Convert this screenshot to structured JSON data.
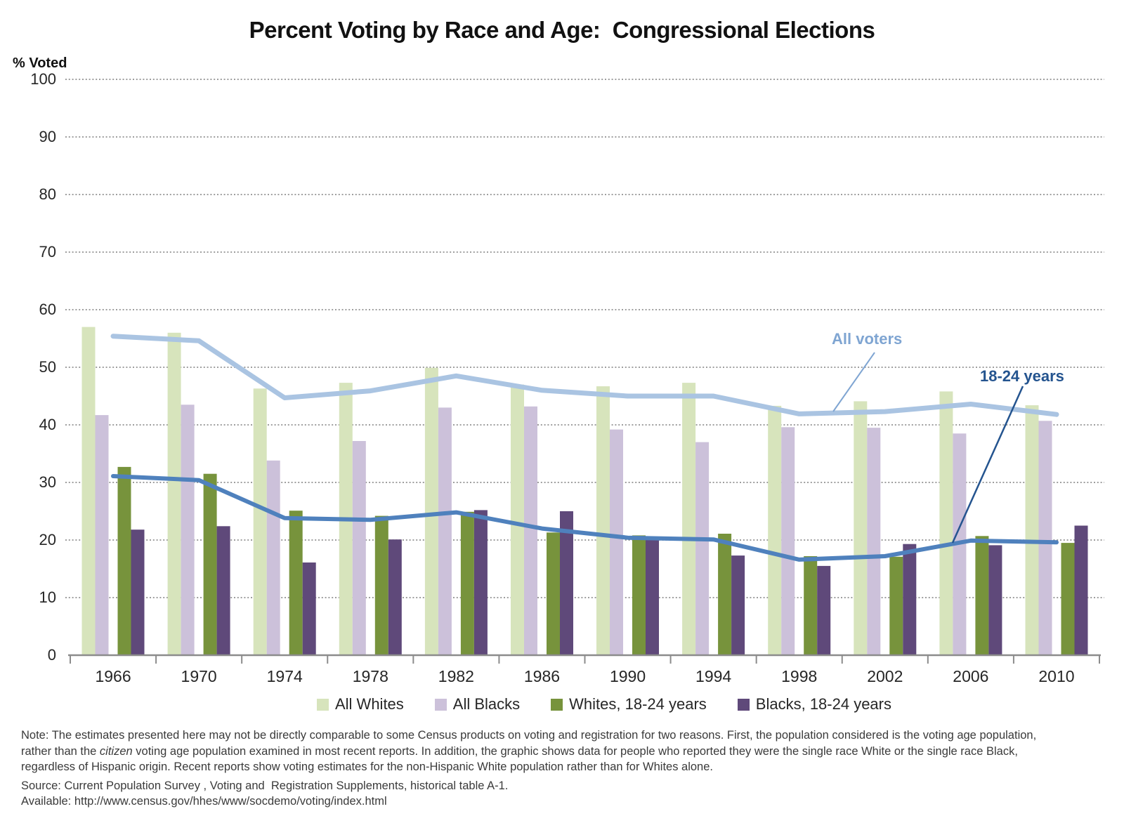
{
  "page": {
    "title": "Percent Voting by Race and Age:  Congressional Elections",
    "y_axis_title": "% Voted"
  },
  "chart_data": {
    "type": "bar+line",
    "title": "Percent Voting by Race and Age:  Congressional Elections",
    "ylabel": "% Voted",
    "ylim": [
      0,
      100
    ],
    "ytick_step": 10,
    "grid": "dotted-horizontal",
    "legend_position": "bottom",
    "categories": [
      "1966",
      "1970",
      "1974",
      "1978",
      "1982",
      "1986",
      "1990",
      "1994",
      "1998",
      "2002",
      "2006",
      "2010"
    ],
    "bar_series": [
      {
        "name": "All Whites",
        "color": "#d7e4bc",
        "values": [
          57.0,
          56.0,
          46.3,
          47.3,
          49.9,
          47.0,
          46.7,
          47.3,
          43.3,
          44.1,
          45.8,
          43.4
        ]
      },
      {
        "name": "All Blacks",
        "color": "#ccc1da",
        "values": [
          41.7,
          43.5,
          33.8,
          37.2,
          43.0,
          43.2,
          39.2,
          37.0,
          39.6,
          39.5,
          38.5,
          40.7
        ]
      },
      {
        "name": "Whites, 18-24 years",
        "color": "#77933c",
        "values": [
          32.7,
          31.5,
          25.1,
          24.2,
          24.9,
          21.3,
          20.8,
          21.1,
          17.2,
          17.1,
          20.7,
          19.5
        ]
      },
      {
        "name": "Blacks, 18-24 years",
        "color": "#5f497a",
        "values": [
          21.8,
          22.4,
          16.1,
          20.1,
          25.2,
          25.0,
          20.0,
          17.3,
          15.5,
          19.3,
          19.1,
          22.5
        ]
      }
    ],
    "line_series": [
      {
        "name": "All voters",
        "color": "#aac4e2",
        "label_color": "#7fa5d2",
        "stroke_width": 7,
        "values": [
          55.4,
          54.6,
          44.7,
          45.9,
          48.5,
          46.0,
          45.0,
          45.0,
          41.9,
          42.3,
          43.6,
          41.8
        ]
      },
      {
        "name": "18-24 years",
        "color": "#4f81bd",
        "label_color": "#24548f",
        "stroke_width": 6,
        "values": [
          31.1,
          30.4,
          23.8,
          23.5,
          24.8,
          22.0,
          20.4,
          20.1,
          16.6,
          17.2,
          19.9,
          19.6
        ]
      }
    ]
  },
  "note": {
    "line1": "Note: The estimates presented here may not be directly comparable to some Census products on voting and registration for two reasons. First, the population considered is the voting age population,",
    "line2_pre": "rather than the ",
    "line2_italic": "citizen",
    "line2_post": " voting age population examined in most recent reports. In addition, the graphic shows data for people who reported they were the single race White or the single race Black,",
    "line3": "regardless of Hispanic origin. Recent reports show voting estimates for the non-Hispanic White population rather than for Whites alone.",
    "source": "Source: Current Population Survey , Voting and  Registration Supplements, historical table A-1.",
    "available": "Available: http://www.census.gov/hhes/www/socdemo/voting/index.html"
  }
}
